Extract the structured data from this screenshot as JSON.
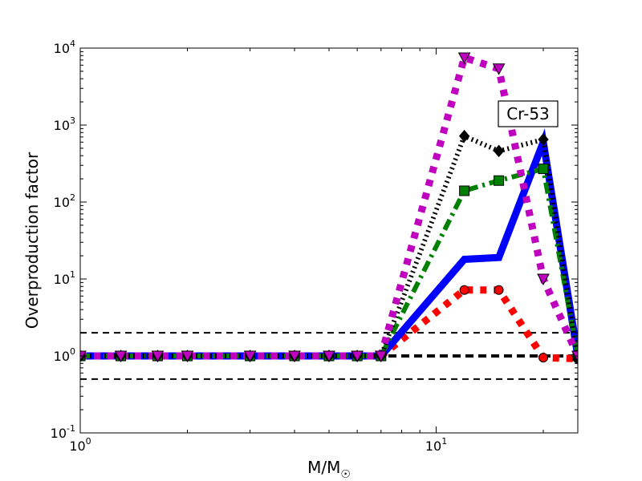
{
  "chart_data": {
    "type": "line",
    "title": "",
    "xlabel": "M/M",
    "xlabel_subscript": "☉",
    "ylabel": "Overproduction factor",
    "xscale": "log",
    "yscale": "log",
    "xlim": [
      1,
      25
    ],
    "ylim": [
      0.1,
      10000
    ],
    "grid": false,
    "annotation": "Cr-53",
    "x_ticks": [
      {
        "value": 1,
        "base": "10",
        "exp": "0"
      },
      {
        "value": 10,
        "base": "10",
        "exp": "1"
      }
    ],
    "y_ticks": [
      {
        "value": 0.1,
        "base": "10",
        "exp": "-1"
      },
      {
        "value": 1,
        "base": "10",
        "exp": "0"
      },
      {
        "value": 10,
        "base": "10",
        "exp": "1"
      },
      {
        "value": 100,
        "base": "10",
        "exp": "2"
      },
      {
        "value": 1000,
        "base": "10",
        "exp": "3"
      },
      {
        "value": 10000,
        "base": "10",
        "exp": "4"
      }
    ],
    "reference_lines": [
      {
        "y": 2,
        "color": "#000000",
        "style": "dashed"
      },
      {
        "y": 1,
        "color": "#000000",
        "style": "dashed-bold"
      },
      {
        "y": 0.5,
        "color": "#000000",
        "style": "dashed"
      }
    ],
    "series": [
      {
        "color": "#ff0000",
        "style": "dotted",
        "marker": "circle",
        "x": [
          1,
          1.3,
          1.65,
          2,
          3,
          4,
          5,
          6,
          7,
          12,
          15,
          20,
          25
        ],
        "y": [
          1,
          1,
          1,
          1,
          1,
          1,
          1,
          1,
          1,
          7.2,
          7.2,
          0.95,
          0.92
        ]
      },
      {
        "color": "#0000ff",
        "style": "solid",
        "marker": "none",
        "x": [
          1,
          1.3,
          1.65,
          2,
          3,
          4,
          5,
          6,
          7,
          12,
          15,
          20,
          25
        ],
        "y": [
          1,
          1,
          1,
          1,
          1,
          1,
          1,
          1,
          1,
          18,
          19,
          600,
          1
        ]
      },
      {
        "color": "#008000",
        "style": "dashdot",
        "marker": "square",
        "x": [
          1,
          1.3,
          1.65,
          2,
          3,
          4,
          5,
          6,
          7,
          12,
          15,
          20,
          25
        ],
        "y": [
          1,
          1,
          1,
          1,
          1,
          1,
          1,
          1,
          1,
          140,
          190,
          270,
          1
        ]
      },
      {
        "color": "#000000",
        "style": "dotted-fine",
        "marker": "diamond",
        "x": [
          1,
          1.3,
          1.65,
          2,
          3,
          4,
          5,
          6,
          7,
          12,
          15,
          20,
          25
        ],
        "y": [
          1,
          1,
          1,
          1,
          1,
          1,
          1,
          1,
          1,
          720,
          460,
          650,
          0.92
        ]
      },
      {
        "color": "#bf00bf",
        "style": "dotted",
        "marker": "triangle-down",
        "x": [
          1,
          1.3,
          1.65,
          2,
          3,
          4,
          5,
          6,
          7,
          12,
          15,
          20,
          25
        ],
        "y": [
          1,
          1,
          1,
          1,
          1,
          1,
          1,
          1,
          1,
          7500,
          5400,
          10,
          1
        ]
      }
    ]
  }
}
